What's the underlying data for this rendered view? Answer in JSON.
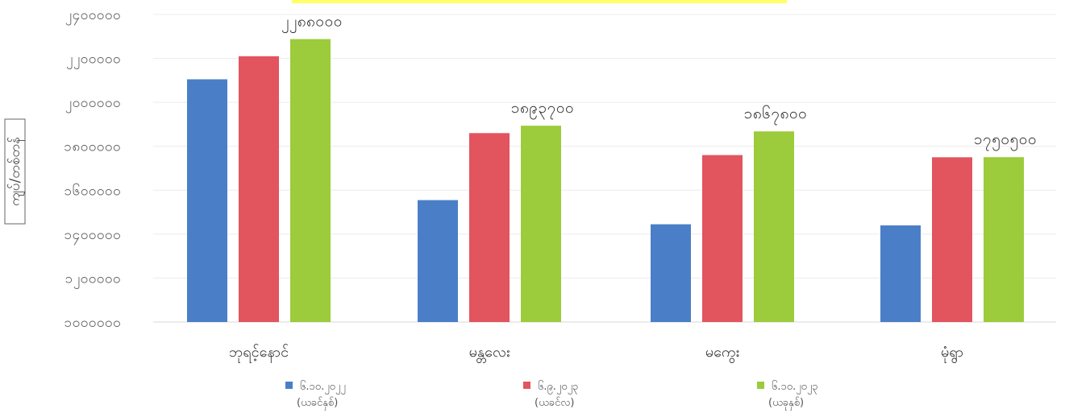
{
  "chart_data": {
    "type": "bar",
    "ylabel": "ကျပ်/တစ်တန်",
    "yticks": [
      "၁၀၀၀၀၀၀",
      "၁၂၀၀၀၀၀",
      "၁၄၀၀၀၀၀",
      "၁၆၀၀၀၀၀",
      "၁၈၀၀၀၀၀",
      "၂၀၀၀၀၀၀",
      "၂၂၀၀၀၀၀",
      "၂၄၀၀၀၀၀"
    ],
    "ylim": [
      1000000,
      2400000
    ],
    "categories": [
      "ဘုရင့်နောင်",
      "မန္တလေး",
      "မကွေး",
      "မုံရွာ"
    ],
    "series": [
      {
        "name": "၆.၁၀.၂၀၂၂",
        "subname": "(ယခင်နှစ်)",
        "color": "#4a7fc8",
        "values": [
          2105000,
          1555000,
          1445000,
          1440000
        ]
      },
      {
        "name": "၆.၉.၂၀၂၃",
        "subname": "(ယခင်လ)",
        "color": "#e2545e",
        "values": [
          2210000,
          1860000,
          1760000,
          1750000
        ]
      },
      {
        "name": "၆.၁၀.၂၀၂၃",
        "subname": "(ယခုနှစ်)",
        "color": "#9ccb3b",
        "values": [
          2288000,
          1893700,
          1867800,
          1750500
        ]
      }
    ],
    "data_labels": [
      "၂၂၈၈၀၀၀",
      "၁၈၉၃၇၀၀",
      "၁၈၆၇၈၀၀",
      "၁၇၅၀၅၀၀"
    ],
    "grid": true,
    "legend": "bottom"
  }
}
